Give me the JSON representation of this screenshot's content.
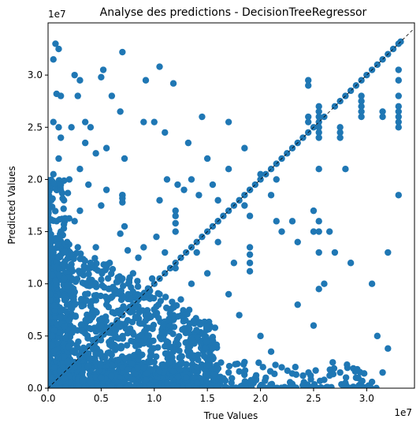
{
  "chart_data": {
    "type": "scatter",
    "title": "Analyse des predictions - DecisionTreeRegressor",
    "xlabel": "True Values",
    "ylabel": "Predicted Values",
    "x_offset_label": "1e7",
    "y_offset_label": "1e7",
    "xlim": [
      0,
      3.45
    ],
    "ylim": [
      0,
      3.5
    ],
    "x_ticks": [
      {
        "value": 0,
        "label": "0.0"
      },
      {
        "value": 0.5,
        "label": "0.5"
      },
      {
        "value": 1.0,
        "label": "1.0"
      },
      {
        "value": 1.5,
        "label": "1.5"
      },
      {
        "value": 2.0,
        "label": "2.0"
      },
      {
        "value": 2.5,
        "label": "2.5"
      },
      {
        "value": 3.0,
        "label": "3.0"
      }
    ],
    "y_ticks": [
      {
        "value": 0,
        "label": "0.0"
      },
      {
        "value": 0.5,
        "label": "0.5"
      },
      {
        "value": 1.0,
        "label": "1.0"
      },
      {
        "value": 1.5,
        "label": "1.5"
      },
      {
        "value": 2.0,
        "label": "2.0"
      },
      {
        "value": 2.5,
        "label": "2.5"
      },
      {
        "value": 3.0,
        "label": "3.0"
      }
    ],
    "grid": false,
    "reference_line": {
      "style": "dashed",
      "from": [
        0,
        0
      ],
      "to": [
        3.45,
        3.45
      ],
      "color": "#000000"
    },
    "marker_color": "#1f77b4",
    "series": [
      {
        "points": [
          [
            0.05,
            3.15
          ],
          [
            0.07,
            3.3
          ],
          [
            0.1,
            3.25
          ],
          [
            0.08,
            2.82
          ],
          [
            0.12,
            2.8
          ],
          [
            0.05,
            2.55
          ],
          [
            0.1,
            2.5
          ],
          [
            0.12,
            2.4
          ],
          [
            0.05,
            2.05
          ],
          [
            0.1,
            2.2
          ],
          [
            0.12,
            1.95
          ],
          [
            0.15,
            1.8
          ],
          [
            0.2,
            2.0
          ],
          [
            0.22,
            2.5
          ],
          [
            0.25,
            3.0
          ],
          [
            0.3,
            2.95
          ],
          [
            0.28,
            2.8
          ],
          [
            0.35,
            2.55
          ],
          [
            0.4,
            2.5
          ],
          [
            0.3,
            2.1
          ],
          [
            0.35,
            2.35
          ],
          [
            0.45,
            2.25
          ],
          [
            0.38,
            1.95
          ],
          [
            0.3,
            1.7
          ],
          [
            0.25,
            1.6
          ],
          [
            0.45,
            1.35
          ],
          [
            0.5,
            1.75
          ],
          [
            0.55,
            1.9
          ],
          [
            0.55,
            2.3
          ],
          [
            0.5,
            2.98
          ],
          [
            0.52,
            3.05
          ],
          [
            0.6,
            2.8
          ],
          [
            0.7,
            3.22
          ],
          [
            0.68,
            2.65
          ],
          [
            0.72,
            2.2
          ],
          [
            0.7,
            1.85
          ],
          [
            0.72,
            1.55
          ],
          [
            0.75,
            1.32
          ],
          [
            0.68,
            1.48
          ],
          [
            0.9,
            2.55
          ],
          [
            0.92,
            2.95
          ],
          [
            1.0,
            2.55
          ],
          [
            1.05,
            3.08
          ],
          [
            1.1,
            2.45
          ],
          [
            1.18,
            2.92
          ],
          [
            1.12,
            2.0
          ],
          [
            1.22,
            1.95
          ],
          [
            1.05,
            1.8
          ],
          [
            1.02,
            1.45
          ],
          [
            1.2,
            1.7
          ],
          [
            1.32,
            2.35
          ],
          [
            1.35,
            2.0
          ],
          [
            1.28,
            1.9
          ],
          [
            1.45,
            2.6
          ],
          [
            1.5,
            2.2
          ],
          [
            1.42,
            1.85
          ],
          [
            1.55,
            1.95
          ],
          [
            1.6,
            1.8
          ],
          [
            1.6,
            1.6
          ],
          [
            1.7,
            2.1
          ],
          [
            1.7,
            2.55
          ],
          [
            1.85,
            2.3
          ],
          [
            1.9,
            1.9
          ],
          [
            2.0,
            2.05
          ],
          [
            1.85,
            1.75
          ],
          [
            1.9,
            1.65
          ],
          [
            2.1,
            1.85
          ],
          [
            2.15,
            2.0
          ],
          [
            2.15,
            1.6
          ],
          [
            2.2,
            1.5
          ],
          [
            2.3,
            1.6
          ],
          [
            2.35,
            1.4
          ],
          [
            2.5,
            1.7
          ],
          [
            2.5,
            1.5
          ],
          [
            2.6,
            1.0
          ],
          [
            2.55,
            0.95
          ],
          [
            2.55,
            2.1
          ],
          [
            2.65,
            1.5
          ],
          [
            2.7,
            1.3
          ],
          [
            2.8,
            2.1
          ],
          [
            2.85,
            1.2
          ],
          [
            3.1,
            0.5
          ],
          [
            3.15,
            0.15
          ],
          [
            3.2,
            0.38
          ],
          [
            3.05,
            1.0
          ],
          [
            3.2,
            1.3
          ],
          [
            2.5,
            0.6
          ],
          [
            2.35,
            0.8
          ],
          [
            2.1,
            0.35
          ],
          [
            2.0,
            0.5
          ],
          [
            1.8,
            0.7
          ],
          [
            1.7,
            0.9
          ],
          [
            1.75,
            1.2
          ],
          [
            1.6,
            1.4
          ],
          [
            1.5,
            1.1
          ],
          [
            1.4,
            1.3
          ],
          [
            1.35,
            1.0
          ],
          [
            1.25,
            0.85
          ],
          [
            1.2,
            1.15
          ],
          [
            1.15,
            0.6
          ],
          [
            1.1,
            1.3
          ],
          [
            1.05,
            0.9
          ],
          [
            0.98,
            1.05
          ],
          [
            0.95,
            0.7
          ],
          [
            0.9,
            1.35
          ],
          [
            0.85,
            1.25
          ],
          [
            0.8,
            1.1
          ],
          [
            0.78,
            0.85
          ],
          [
            0.75,
            0.65
          ],
          [
            0.7,
            1.05
          ],
          [
            0.62,
            0.95
          ],
          [
            0.58,
            1.2
          ],
          [
            0.55,
            0.8
          ],
          [
            0.5,
            0.6
          ],
          [
            0.45,
            1.0
          ],
          [
            0.42,
            0.75
          ],
          [
            0.4,
            1.2
          ],
          [
            0.35,
            0.9
          ],
          [
            0.32,
            0.55
          ],
          [
            0.3,
            1.1
          ],
          [
            0.28,
            1.35
          ],
          [
            0.25,
            0.8
          ],
          [
            0.22,
            1.15
          ],
          [
            0.2,
            0.65
          ],
          [
            0.18,
            1.4
          ],
          [
            0.15,
            1.05
          ],
          [
            0.12,
            1.5
          ],
          [
            0.1,
            1.25
          ],
          [
            0.08,
            1.6
          ],
          [
            0.05,
            1.3
          ],
          [
            0.03,
            1.8
          ],
          [
            0.02,
            0.9
          ],
          [
            0.04,
            0.5
          ],
          [
            0.06,
            0.2
          ],
          [
            0.15,
            0.3
          ],
          [
            0.25,
            0.2
          ],
          [
            0.35,
            0.35
          ],
          [
            0.45,
            0.25
          ],
          [
            0.6,
            0.4
          ],
          [
            0.7,
            0.2
          ],
          [
            0.85,
            0.35
          ],
          [
            1.0,
            0.25
          ],
          [
            1.1,
            0.4
          ],
          [
            1.25,
            0.3
          ],
          [
            1.4,
            0.2
          ],
          [
            1.55,
            0.3
          ],
          [
            1.7,
            0.15
          ],
          [
            1.85,
            0.25
          ],
          [
            2.05,
            0.1
          ],
          [
            2.2,
            0.2
          ],
          [
            2.4,
            0.12
          ],
          [
            2.6,
            0.08
          ],
          [
            2.75,
            0.15
          ],
          [
            2.9,
            0.1
          ],
          [
            3.05,
            0.06
          ],
          [
            0.5,
            0.1
          ],
          [
            0.8,
            0.08
          ],
          [
            1.3,
            0.1
          ],
          [
            1.9,
            0.05
          ],
          [
            2.3,
            0.04
          ],
          [
            2.8,
            0.05
          ]
        ],
        "diagonal_points": [
          0.05,
          0.1,
          0.15,
          0.2,
          0.25,
          0.3,
          0.35,
          0.4,
          0.45,
          0.5,
          0.55,
          0.6,
          0.65,
          0.7,
          0.75,
          0.8,
          0.85,
          0.9,
          0.95,
          1.0,
          1.05,
          1.1,
          1.15,
          1.2,
          1.25,
          1.3,
          1.35,
          1.4,
          1.45,
          1.5,
          1.55,
          1.6,
          1.65,
          1.7,
          1.75,
          1.8,
          1.85,
          1.9,
          1.95,
          2.0,
          2.05,
          2.1,
          2.15,
          2.2,
          2.25,
          2.3,
          2.35,
          2.4,
          2.45,
          2.5,
          2.55,
          2.6,
          2.7,
          2.75,
          2.8,
          2.85,
          2.9,
          2.95,
          3.0,
          3.05,
          3.1,
          3.15,
          3.2,
          3.25,
          3.3,
          3.32
        ],
        "vertical_columns": [
          {
            "x": 0.7,
            "y": [
              1.78,
              1.85,
              1.82
            ]
          },
          {
            "x": 2.45,
            "y": [
              2.95,
              2.9,
              2.6,
              2.55
            ]
          },
          {
            "x": 2.55,
            "y": [
              2.7,
              2.65,
              2.6,
              2.5,
              2.45,
              2.4,
              1.6,
              1.5,
              1.3
            ]
          },
          {
            "x": 2.75,
            "y": [
              2.5,
              2.45,
              2.4
            ]
          },
          {
            "x": 2.95,
            "y": [
              2.8,
              2.75,
              2.7,
              2.65,
              2.6
            ]
          },
          {
            "x": 3.3,
            "y": [
              3.05,
              2.95,
              2.8,
              2.7,
              2.65,
              2.6,
              2.55,
              2.5,
              1.85
            ]
          },
          {
            "x": 3.15,
            "y": [
              2.65,
              2.6
            ]
          },
          {
            "x": 1.9,
            "y": [
              1.35,
              1.28,
              1.2,
              1.12
            ]
          },
          {
            "x": 1.2,
            "y": [
              1.65,
              1.58,
              1.5
            ]
          }
        ]
      }
    ],
    "dense_region": {
      "x_max": 1.6,
      "y_max": 1.5,
      "description": "dense cloud near origin"
    }
  }
}
